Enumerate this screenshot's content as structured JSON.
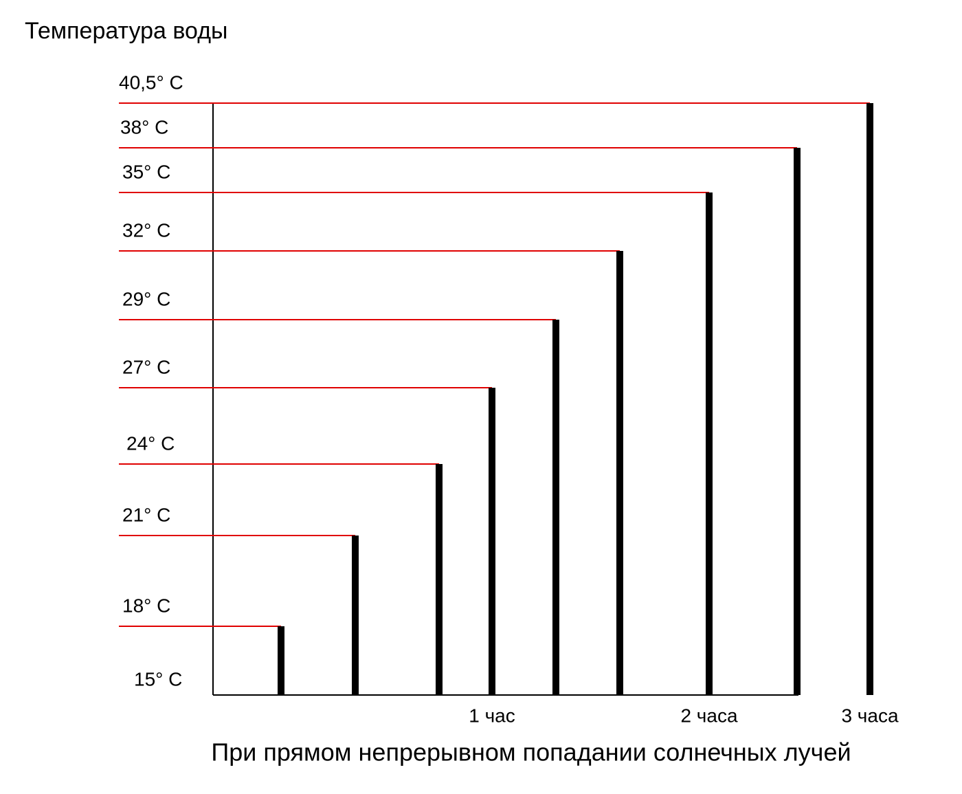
{
  "chart_data": {
    "type": "bar",
    "title": "Температура воды",
    "x_label": "При прямом непрерывном попадании солнечных лучей",
    "categories": [
      null,
      null,
      null,
      "1 час",
      null,
      null,
      "2 часа",
      null,
      "3 часа"
    ],
    "values": [
      18,
      21,
      24,
      27,
      29,
      32,
      35,
      38,
      40.5
    ],
    "color": "#000000",
    "grid": true,
    "grid_color": "#e00000",
    "ylim": [
      15,
      40.5
    ],
    "yticks": [
      {
        "value": 15,
        "label": "15° C"
      },
      {
        "value": 18,
        "label": "18° C"
      },
      {
        "value": 21,
        "label": "21° C"
      },
      {
        "value": 24,
        "label": "24° C"
      },
      {
        "value": 27,
        "label": "27° C"
      },
      {
        "value": 29,
        "label": "29° C"
      },
      {
        "value": 32,
        "label": "32° C"
      },
      {
        "value": 35,
        "label": "35° C"
      },
      {
        "value": 38,
        "label": "38° C"
      },
      {
        "value": 40.5,
        "label": "40,5° C"
      }
    ]
  }
}
